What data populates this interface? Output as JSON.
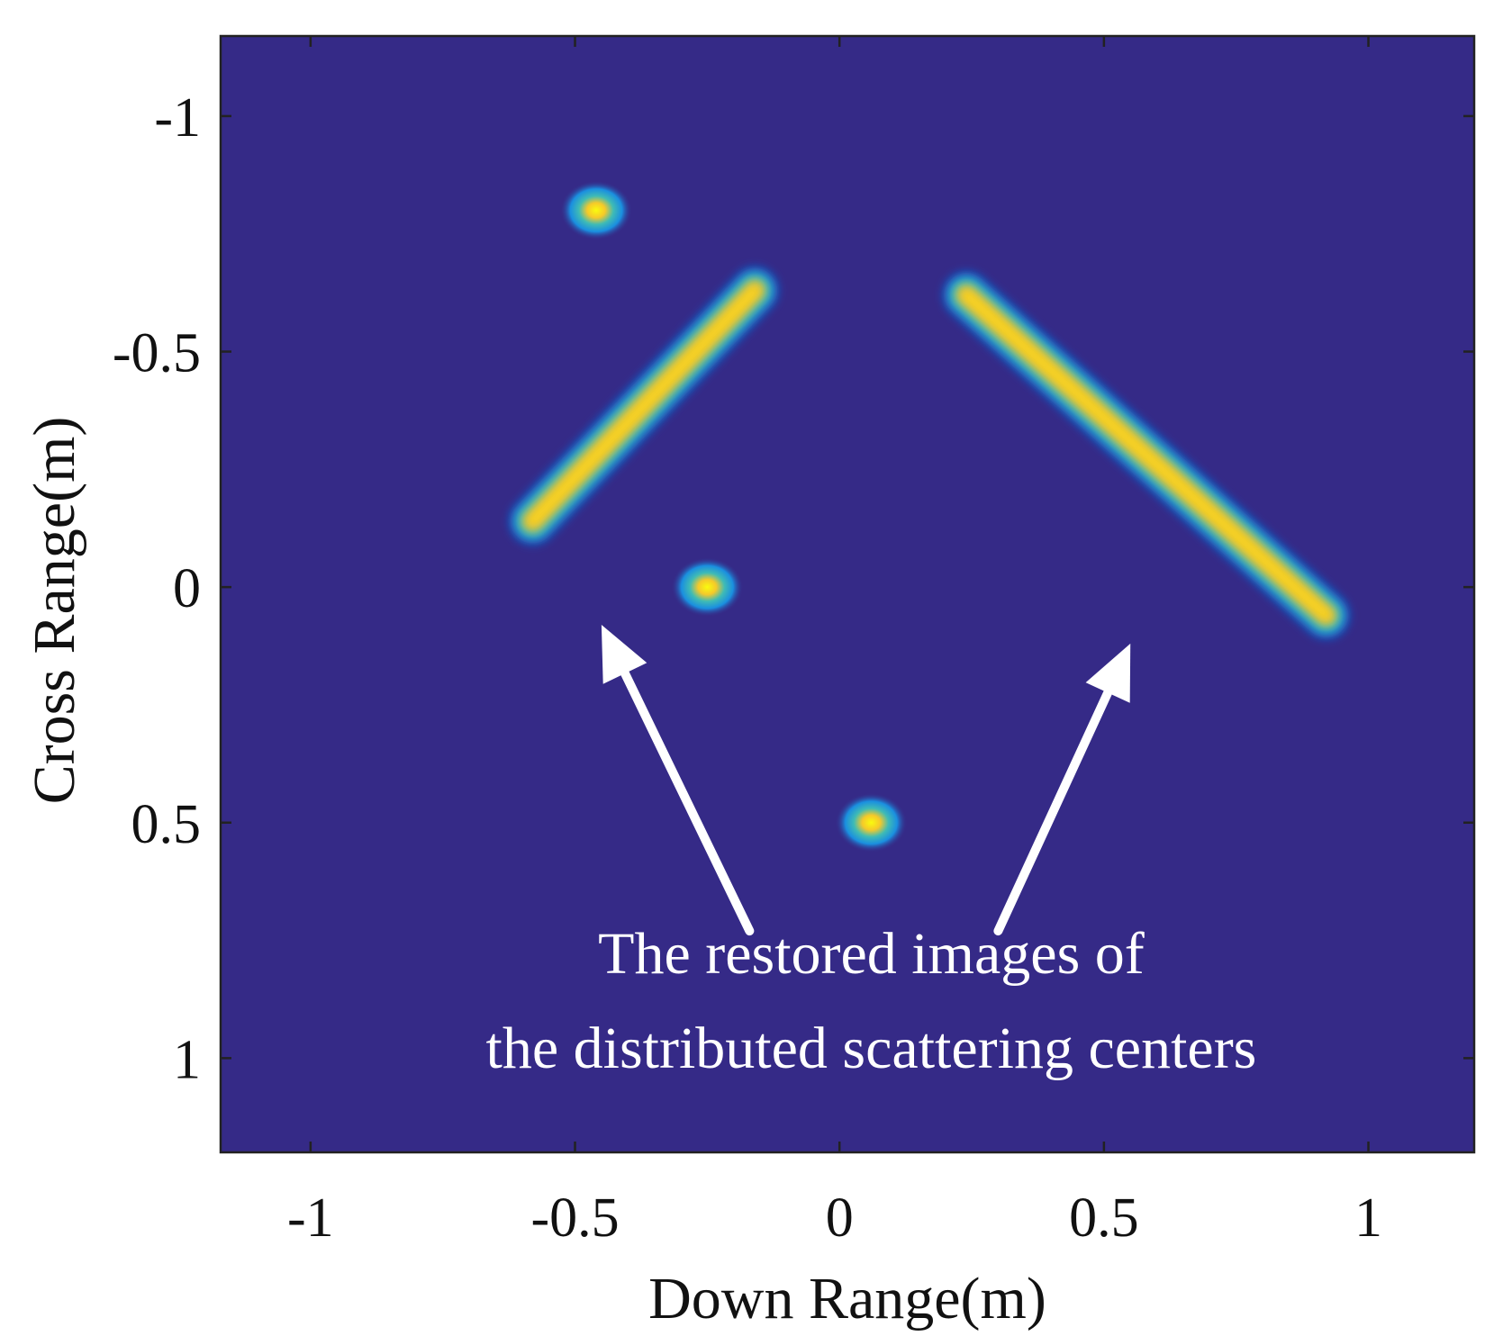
{
  "chart_data": {
    "type": "heatmap",
    "xlabel": "Down Range(m)",
    "ylabel": "Cross Range(m)",
    "xlim": [
      -1.17,
      1.2
    ],
    "ylim": [
      -1.17,
      1.2
    ],
    "y_reversed": true,
    "xticks": [
      -1,
      -0.5,
      0,
      0.5,
      1
    ],
    "yticks": [
      -1,
      -0.5,
      0,
      0.5,
      1
    ],
    "xtick_labels": [
      "-1",
      "-0.5",
      "0",
      "0.5",
      "1"
    ],
    "ytick_labels": [
      "-1",
      "-0.5",
      "0",
      "0.5",
      "1"
    ],
    "colormap": "parula",
    "background_color": "#352a87",
    "point_scatterers": [
      {
        "x": -0.46,
        "y": -0.8
      },
      {
        "x": -0.25,
        "y": 0.0
      },
      {
        "x": 0.06,
        "y": 0.5
      }
    ],
    "distributed_scatterers": [
      {
        "x1": -0.58,
        "y1": -0.14,
        "x2": -0.16,
        "y2": -0.63
      },
      {
        "x1": 0.24,
        "y1": -0.62,
        "x2": 0.92,
        "y2": 0.06
      }
    ],
    "annotation": {
      "lines": [
        "The restored images of",
        "the distributed scattering centers"
      ],
      "color": "#ffffff",
      "arrows": [
        {
          "from": [
            -0.17,
            0.73
          ],
          "to": [
            -0.45,
            0.08
          ]
        },
        {
          "from": [
            0.3,
            0.73
          ],
          "to": [
            0.55,
            0.12
          ]
        }
      ]
    }
  }
}
